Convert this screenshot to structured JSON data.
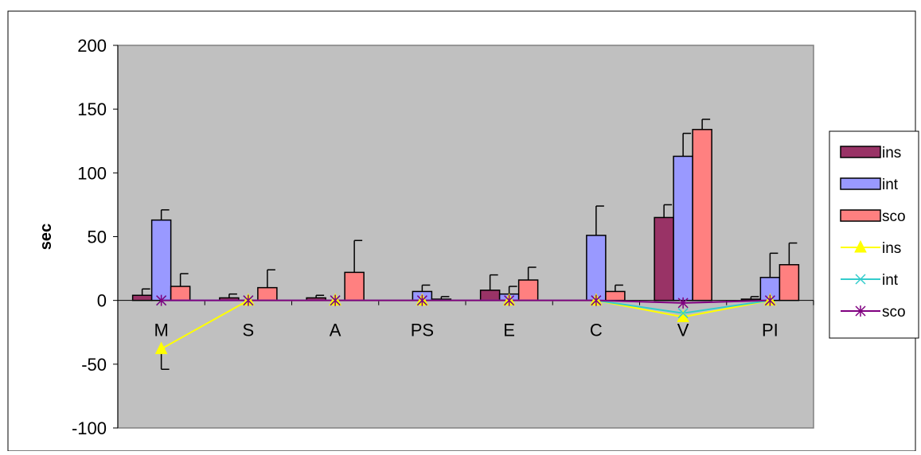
{
  "chart_data": {
    "type": "bar",
    "title": "",
    "xlabel": "",
    "ylabel": "sec",
    "ylim": [
      -100,
      200
    ],
    "yticks": [
      200,
      150,
      100,
      50,
      0,
      -50,
      -100
    ],
    "grid": false,
    "plot_background": "#c0c0c0",
    "legend_position": "right",
    "categories": [
      "M",
      "S",
      "A",
      "PS",
      "E",
      "C",
      "V",
      "PI"
    ],
    "bar_series": [
      {
        "name": "ins",
        "color": "#993366",
        "values": [
          4,
          2,
          2,
          0,
          8,
          0,
          65,
          1
        ],
        "errors": [
          5,
          3,
          2,
          0,
          12,
          0,
          10,
          2
        ]
      },
      {
        "name": "int",
        "color": "#9999ff",
        "values": [
          63,
          0,
          0,
          7,
          5,
          51,
          113,
          18
        ],
        "errors": [
          8,
          0,
          0,
          5,
          6,
          23,
          18,
          19
        ]
      },
      {
        "name": "sco",
        "color": "#ff8080",
        "values": [
          11,
          10,
          22,
          1,
          16,
          7,
          134,
          28
        ],
        "errors": [
          10,
          14,
          25,
          2,
          10,
          5,
          8,
          17
        ]
      }
    ],
    "line_series": [
      {
        "name": "ins",
        "color": "#ffff00",
        "marker": "triangle",
        "values": [
          -38,
          0,
          0,
          0,
          0,
          0,
          -13,
          0
        ],
        "errors": [
          16,
          0,
          0,
          0,
          0,
          0,
          0,
          0
        ]
      },
      {
        "name": "int",
        "color": "#33cccc",
        "marker": "x",
        "values": [
          0,
          0,
          0,
          0,
          0,
          0,
          -10,
          0
        ],
        "errors": [
          0,
          0,
          0,
          0,
          0,
          0,
          0,
          0
        ]
      },
      {
        "name": "sco",
        "color": "#800080",
        "marker": "star",
        "values": [
          0,
          0,
          0,
          0,
          0,
          0,
          -2,
          0
        ],
        "errors": [
          0,
          0,
          0,
          0,
          0,
          0,
          0,
          0
        ]
      }
    ]
  }
}
